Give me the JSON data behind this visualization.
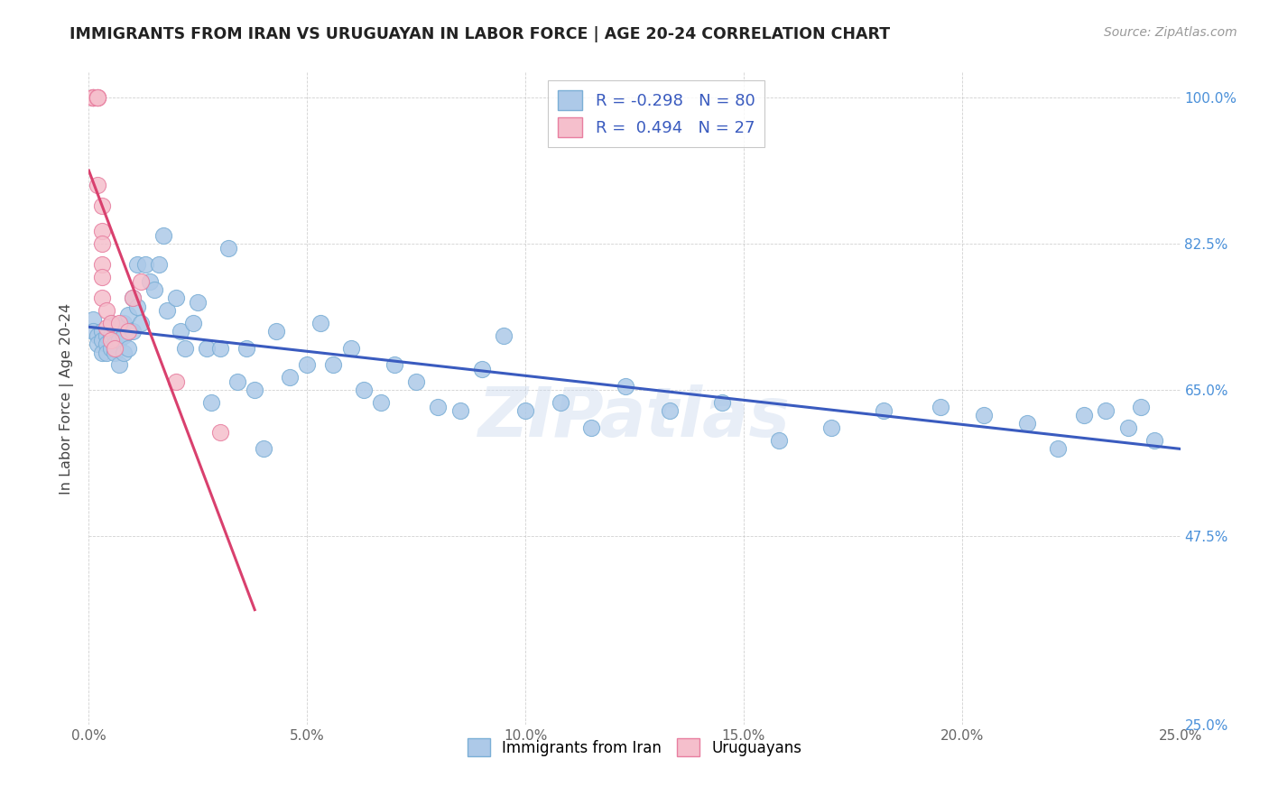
{
  "title": "IMMIGRANTS FROM IRAN VS URUGUAYAN IN LABOR FORCE | AGE 20-24 CORRELATION CHART",
  "source": "Source: ZipAtlas.com",
  "ylabel": "In Labor Force | Age 20-24",
  "xmin": 0.0,
  "xmax": 0.25,
  "ymin": 0.25,
  "ymax": 1.03,
  "xticks": [
    0.0,
    0.05,
    0.1,
    0.15,
    0.2,
    0.25
  ],
  "xticklabels": [
    "0.0%",
    "5.0%",
    "10.0%",
    "15.0%",
    "20.0%",
    "25.0%"
  ],
  "yticks": [
    0.25,
    0.475,
    0.65,
    0.825,
    1.0
  ],
  "yticklabels_right": [
    "25.0%",
    "47.5%",
    "65.0%",
    "82.5%",
    "100.0%"
  ],
  "iran_R": -0.298,
  "iran_N": 80,
  "uruguay_R": 0.494,
  "uruguay_N": 27,
  "iran_color": "#adc9e8",
  "iran_edge_color": "#7bafd6",
  "uruguay_color": "#f5bfcc",
  "uruguay_edge_color": "#e87fa0",
  "iran_line_color": "#3a5bbf",
  "uruguay_line_color": "#d9406e",
  "watermark": "ZIPatlas",
  "legend_iran_label": "Immigrants from Iran",
  "legend_uruguay_label": "Uruguayans",
  "iran_x": [
    0.001,
    0.001,
    0.002,
    0.002,
    0.003,
    0.003,
    0.003,
    0.004,
    0.004,
    0.004,
    0.005,
    0.005,
    0.005,
    0.006,
    0.006,
    0.006,
    0.007,
    0.007,
    0.007,
    0.008,
    0.008,
    0.008,
    0.009,
    0.009,
    0.01,
    0.01,
    0.011,
    0.011,
    0.012,
    0.013,
    0.014,
    0.015,
    0.016,
    0.017,
    0.018,
    0.02,
    0.021,
    0.022,
    0.024,
    0.025,
    0.027,
    0.028,
    0.03,
    0.032,
    0.034,
    0.036,
    0.038,
    0.04,
    0.043,
    0.046,
    0.05,
    0.053,
    0.056,
    0.06,
    0.063,
    0.067,
    0.07,
    0.075,
    0.08,
    0.085,
    0.09,
    0.095,
    0.1,
    0.108,
    0.115,
    0.123,
    0.133,
    0.145,
    0.158,
    0.17,
    0.182,
    0.195,
    0.205,
    0.215,
    0.222,
    0.228,
    0.233,
    0.238,
    0.241,
    0.244
  ],
  "iran_y": [
    0.735,
    0.72,
    0.715,
    0.705,
    0.72,
    0.71,
    0.695,
    0.715,
    0.705,
    0.695,
    0.73,
    0.715,
    0.7,
    0.715,
    0.705,
    0.695,
    0.725,
    0.71,
    0.68,
    0.73,
    0.715,
    0.695,
    0.74,
    0.7,
    0.76,
    0.72,
    0.8,
    0.75,
    0.73,
    0.8,
    0.78,
    0.77,
    0.8,
    0.835,
    0.745,
    0.76,
    0.72,
    0.7,
    0.73,
    0.755,
    0.7,
    0.635,
    0.7,
    0.82,
    0.66,
    0.7,
    0.65,
    0.58,
    0.72,
    0.665,
    0.68,
    0.73,
    0.68,
    0.7,
    0.65,
    0.635,
    0.68,
    0.66,
    0.63,
    0.625,
    0.675,
    0.715,
    0.625,
    0.635,
    0.605,
    0.655,
    0.625,
    0.635,
    0.59,
    0.605,
    0.625,
    0.63,
    0.62,
    0.61,
    0.58,
    0.62,
    0.625,
    0.605,
    0.63,
    0.59
  ],
  "uruguay_x": [
    0.001,
    0.001,
    0.001,
    0.001,
    0.001,
    0.002,
    0.002,
    0.002,
    0.002,
    0.002,
    0.003,
    0.003,
    0.003,
    0.003,
    0.003,
    0.003,
    0.004,
    0.004,
    0.005,
    0.005,
    0.006,
    0.007,
    0.009,
    0.01,
    0.012,
    0.02,
    0.03
  ],
  "uruguay_y": [
    1.0,
    1.0,
    1.0,
    1.0,
    1.0,
    1.0,
    1.0,
    1.0,
    1.0,
    0.895,
    0.87,
    0.84,
    0.825,
    0.8,
    0.785,
    0.76,
    0.745,
    0.725,
    0.71,
    0.73,
    0.7,
    0.73,
    0.72,
    0.76,
    0.78,
    0.66,
    0.6
  ]
}
